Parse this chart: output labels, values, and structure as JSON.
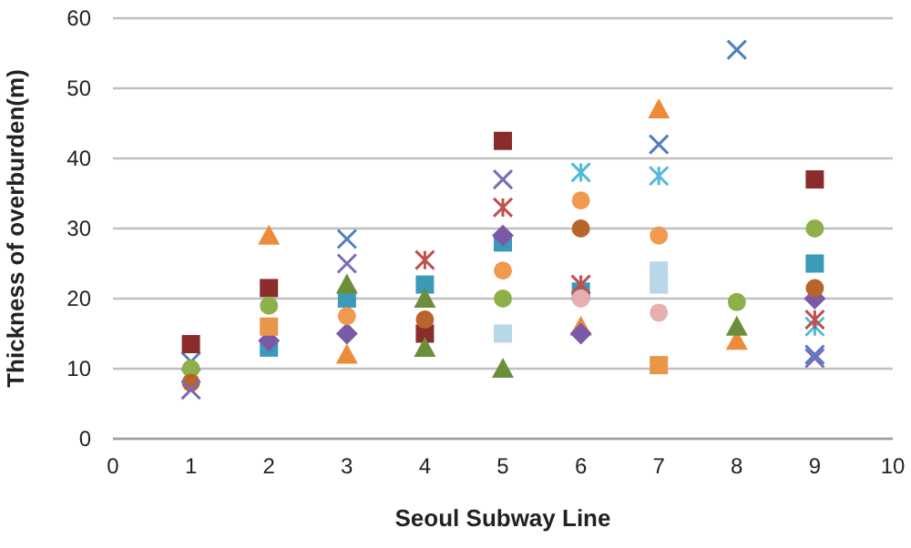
{
  "chart_data": {
    "type": "scatter",
    "xlabel": "Seoul Subway Line",
    "ylabel": "Thickness of overburden(m)",
    "xlim": [
      0,
      10
    ],
    "xticks": [
      0,
      1,
      2,
      3,
      4,
      5,
      6,
      7,
      8,
      9,
      10
    ],
    "ylim": [
      0,
      60
    ],
    "yticks": [
      0,
      10,
      20,
      30,
      40,
      50,
      60
    ],
    "grid": "y",
    "series": [
      {
        "color": "#ed8b3a",
        "marker": "triangle",
        "x": [
          2,
          3,
          6,
          7,
          8
        ],
        "values": [
          29,
          12,
          16,
          47,
          14
        ]
      },
      {
        "color": "#4f7fbf",
        "marker": "cross",
        "x": [
          1,
          3,
          7,
          8,
          9
        ],
        "values": [
          11,
          28.5,
          42,
          55.5,
          12
        ]
      },
      {
        "color": "#8b2c2c",
        "marker": "square",
        "x": [
          1,
          2,
          4,
          5,
          9
        ],
        "values": [
          13.5,
          21.5,
          15,
          42.5,
          37
        ]
      },
      {
        "color": "#8db04a",
        "marker": "circle",
        "x": [
          1,
          2,
          5,
          8,
          9
        ],
        "values": [
          10,
          19,
          20,
          19.5,
          30
        ]
      },
      {
        "color": "#3a9ab8",
        "marker": "square",
        "x": [
          2,
          3,
          4,
          5,
          6,
          9
        ],
        "values": [
          13,
          20,
          22,
          28,
          21,
          25
        ]
      },
      {
        "color": "#7a5aa6",
        "marker": "diamond",
        "x": [
          2,
          3,
          5,
          6,
          9
        ],
        "values": [
          14,
          15,
          29,
          15,
          20
        ]
      },
      {
        "color": "#b8642a",
        "marker": "circle",
        "x": [
          1,
          4,
          6,
          9
        ],
        "values": [
          8,
          17,
          30,
          21.5
        ]
      },
      {
        "color": "#4fbbd9",
        "marker": "cross",
        "x": [
          6,
          7,
          9
        ],
        "values": [
          38,
          37.5,
          16
        ]
      },
      {
        "color": "#c0504d",
        "marker": "cross",
        "x": [
          4,
          5,
          6,
          9
        ],
        "values": [
          25.5,
          33,
          22,
          17
        ]
      },
      {
        "color": "#7c6ab8",
        "marker": "cross",
        "x": [
          1,
          3,
          5,
          9
        ],
        "values": [
          7,
          25,
          37,
          11.5
        ]
      },
      {
        "color": "#f09a50",
        "marker": "circle",
        "x": [
          3,
          5,
          6,
          7
        ],
        "values": [
          17.5,
          24,
          34,
          29
        ]
      },
      {
        "color": "#6b8e3a",
        "marker": "triangle",
        "x": [
          3,
          4,
          4,
          5,
          8
        ],
        "values": [
          22,
          13,
          20,
          10,
          16
        ]
      },
      {
        "color": "#b8d8e8",
        "marker": "square",
        "x": [
          5,
          7,
          7
        ],
        "values": [
          15,
          22,
          24
        ]
      },
      {
        "color": "#e6b0b0",
        "marker": "circle",
        "x": [
          6,
          7
        ],
        "values": [
          20,
          18
        ]
      },
      {
        "color": "#e8964a",
        "marker": "square",
        "x": [
          7,
          2
        ],
        "values": [
          10.5,
          16
        ]
      }
    ]
  }
}
